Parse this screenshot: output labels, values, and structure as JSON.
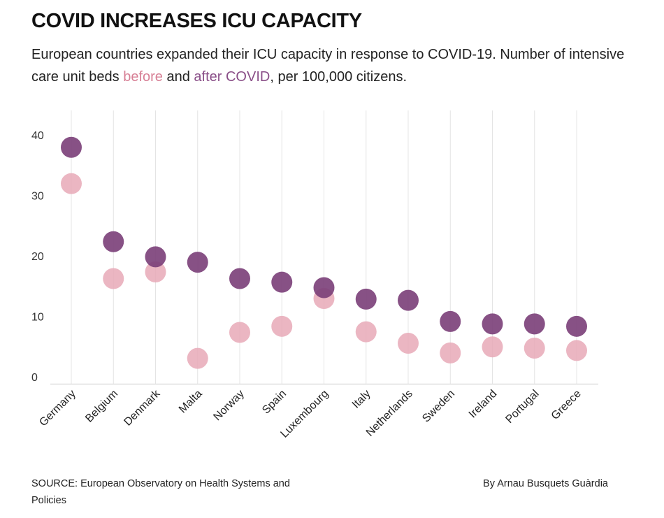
{
  "header": {
    "title": "COVID INCREASES ICU CAPACITY",
    "subtitle_part1": "European countries expanded their ICU capacity in response to COVID-19. Number of intensive care unit beds ",
    "subtitle_before": "before",
    "subtitle_and": " and ",
    "subtitle_after": "after COVID",
    "subtitle_part2": ", per 100,000 citizens."
  },
  "chart_data": {
    "type": "scatter",
    "title": "COVID INCREASES ICU CAPACITY",
    "xlabel": "",
    "ylabel": "",
    "ylim": [
      0,
      42
    ],
    "yticks": [
      0,
      10,
      20,
      30,
      40
    ],
    "grid": true,
    "categories": [
      "Germany",
      "Belgium",
      "Denmark",
      "Malta",
      "Norway",
      "Spain",
      "Luxembourg",
      "Italy",
      "Netherlands",
      "Sweden",
      "Ireland",
      "Portugal",
      "Greece"
    ],
    "series": [
      {
        "name": "before",
        "color": "#e7a9b7",
        "values": [
          33.1,
          17.4,
          18.5,
          4.2,
          8.5,
          9.5,
          14.1,
          8.6,
          6.7,
          5.1,
          6.1,
          5.9,
          5.5
        ]
      },
      {
        "name": "after COVID",
        "color": "#7a3e78",
        "values": [
          39.1,
          23.5,
          21.0,
          20.1,
          17.4,
          16.8,
          15.9,
          14.0,
          13.8,
          10.3,
          9.9,
          9.9,
          9.5
        ]
      }
    ]
  },
  "footer": {
    "source": "SOURCE: European Observatory on Health Systems and Policies",
    "credit": "By Arnau Busquets Guàrdia"
  }
}
